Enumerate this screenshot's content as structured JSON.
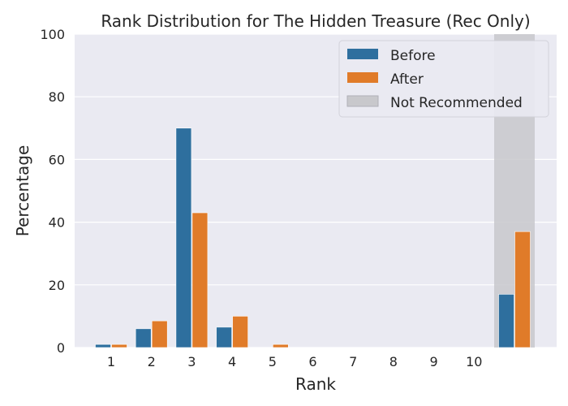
{
  "chart_data": {
    "type": "bar",
    "title": "Rank Distribution for The Hidden Treasure (Rec Only)",
    "xlabel": "Rank",
    "ylabel": "Percentage",
    "ylim": [
      0,
      100
    ],
    "yticks": [
      0,
      20,
      40,
      60,
      80,
      100
    ],
    "categories": [
      "1",
      "2",
      "3",
      "4",
      "5",
      "6",
      "7",
      "8",
      "9",
      "10",
      ""
    ],
    "series": [
      {
        "name": "Before",
        "color": "#2e6f9e",
        "values": [
          1,
          6,
          70,
          6.5,
          0,
          0,
          0,
          0,
          0,
          0,
          17
        ]
      },
      {
        "name": "After",
        "color": "#e07b29",
        "values": [
          1,
          8.5,
          43,
          10,
          1,
          0,
          0,
          0,
          0,
          0,
          37
        ]
      }
    ],
    "shaded_region": {
      "label": "Not Recommended",
      "color": "#c8c8cc"
    },
    "legend": {
      "position": "top-right",
      "entries": [
        "Before",
        "After",
        "Not Recommended"
      ]
    },
    "grid": true,
    "background": "#eaeaf2"
  }
}
